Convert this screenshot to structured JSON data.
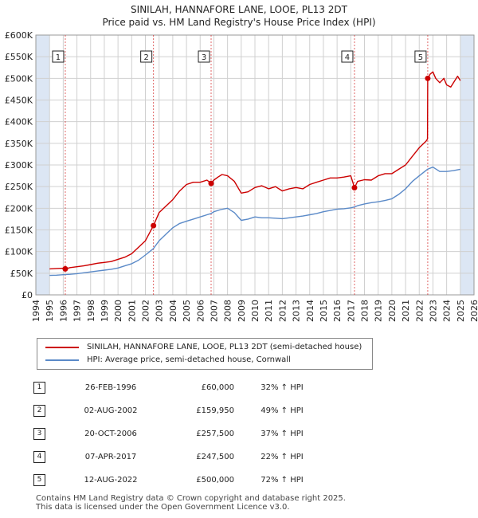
{
  "title_line1": "SINILAH, HANNAFORE LANE, LOOE, PL13 2DT",
  "title_line2": "Price paid vs. HM Land Registry's House Price Index (HPI)",
  "legend": {
    "property": "SINILAH, HANNAFORE LANE, LOOE, PL13 2DT (semi-detached house)",
    "hpi": "HPI: Average price, semi-detached house, Cornwall"
  },
  "sales": [
    {
      "num": "1",
      "date": "26-FEB-1996",
      "price": "£60,000",
      "hpi": "32% ↑ HPI"
    },
    {
      "num": "2",
      "date": "02-AUG-2002",
      "price": "£159,950",
      "hpi": "49% ↑ HPI"
    },
    {
      "num": "3",
      "date": "20-OCT-2006",
      "price": "£257,500",
      "hpi": "37% ↑ HPI"
    },
    {
      "num": "4",
      "date": "07-APR-2017",
      "price": "£247,500",
      "hpi": "22% ↑ HPI"
    },
    {
      "num": "5",
      "date": "12-AUG-2022",
      "price": "£500,000",
      "hpi": "72% ↑ HPI"
    }
  ],
  "footer_line1": "Contains HM Land Registry data © Crown copyright and database right 2025.",
  "footer_line2": "This data is licensed under the Open Government Licence v3.0.",
  "colors": {
    "property": "#cc0000",
    "hpi": "#5b8ac8",
    "shade": "#dce6f4",
    "grid": "#d0d0d0"
  },
  "chart_data": {
    "type": "line",
    "title": "SINILAH, HANNAFORE LANE, LOOE, PL13 2DT — Price paid vs. HM Land Registry's House Price Index (HPI)",
    "xlabel": "",
    "ylabel": "",
    "xlim": [
      1994,
      2026
    ],
    "ylim": [
      0,
      600000
    ],
    "x_ticks": [
      1994,
      1995,
      1996,
      1997,
      1998,
      1999,
      2000,
      2001,
      2002,
      2003,
      2004,
      2005,
      2006,
      2007,
      2008,
      2009,
      2010,
      2011,
      2012,
      2013,
      2014,
      2015,
      2016,
      2017,
      2018,
      2019,
      2020,
      2021,
      2022,
      2023,
      2024,
      2025,
      2026
    ],
    "y_ticks": [
      0,
      50000,
      100000,
      150000,
      200000,
      250000,
      300000,
      350000,
      400000,
      450000,
      500000,
      550000,
      600000
    ],
    "y_tick_labels": [
      "£0",
      "£50K",
      "£100K",
      "£150K",
      "£200K",
      "£250K",
      "£300K",
      "£350K",
      "£400K",
      "£450K",
      "£500K",
      "£550K",
      "£600K"
    ],
    "shaded_ranges": [
      [
        1994,
        1995
      ],
      [
        2025,
        2026
      ]
    ],
    "series": [
      {
        "name": "SINILAH, HANNAFORE LANE, LOOE, PL13 2DT (semi-detached house)",
        "x": [
          1995.0,
          1995.5,
          1996.0,
          1996.15,
          1996.5,
          1997.0,
          1997.5,
          1998.0,
          1998.5,
          1999.0,
          1999.5,
          2000.0,
          2000.5,
          2001.0,
          2001.5,
          2002.0,
          2002.59,
          2003.0,
          2003.5,
          2004.0,
          2004.5,
          2005.0,
          2005.5,
          2006.0,
          2006.5,
          2006.8,
          2007.0,
          2007.3,
          2007.6,
          2008.0,
          2008.5,
          2009.0,
          2009.5,
          2010.0,
          2010.5,
          2011.0,
          2011.5,
          2012.0,
          2012.5,
          2013.0,
          2013.5,
          2014.0,
          2014.5,
          2015.0,
          2015.5,
          2016.0,
          2016.5,
          2017.0,
          2017.27,
          2017.5,
          2018.0,
          2018.5,
          2019.0,
          2019.5,
          2020.0,
          2020.5,
          2021.0,
          2021.5,
          2022.0,
          2022.5,
          2022.6,
          2022.62,
          2022.8,
          2023.0,
          2023.2,
          2023.5,
          2023.8,
          2024.0,
          2024.3,
          2024.6,
          2024.8,
          2025.0
        ],
        "values": [
          60000,
          61000,
          61500,
          60000,
          63000,
          65000,
          67000,
          70000,
          73000,
          75000,
          77000,
          82000,
          87000,
          95000,
          110000,
          125000,
          159950,
          190000,
          205000,
          220000,
          240000,
          255000,
          260000,
          260000,
          265000,
          257500,
          265000,
          272000,
          278000,
          275000,
          262000,
          235000,
          238000,
          248000,
          252000,
          245000,
          250000,
          240000,
          245000,
          248000,
          245000,
          255000,
          260000,
          265000,
          270000,
          270000,
          272000,
          275000,
          247500,
          262000,
          266000,
          265000,
          275000,
          280000,
          280000,
          290000,
          300000,
          320000,
          340000,
          355000,
          360000,
          500000,
          510000,
          515000,
          500000,
          490000,
          500000,
          485000,
          480000,
          495000,
          505000,
          495000
        ]
      },
      {
        "name": "HPI: Average price, semi-detached house, Cornwall",
        "x": [
          1995.0,
          1995.5,
          1996.0,
          1996.5,
          1997.0,
          1997.5,
          1998.0,
          1998.5,
          1999.0,
          1999.5,
          2000.0,
          2000.5,
          2001.0,
          2001.5,
          2002.0,
          2002.59,
          2003.0,
          2003.5,
          2004.0,
          2004.5,
          2005.0,
          2005.5,
          2006.0,
          2006.5,
          2006.8,
          2007.0,
          2007.5,
          2008.0,
          2008.5,
          2009.0,
          2009.5,
          2010.0,
          2010.5,
          2011.0,
          2011.5,
          2012.0,
          2012.5,
          2013.0,
          2013.5,
          2014.0,
          2014.5,
          2015.0,
          2015.5,
          2016.0,
          2016.5,
          2017.0,
          2017.27,
          2017.5,
          2018.0,
          2018.5,
          2019.0,
          2019.5,
          2020.0,
          2020.5,
          2021.0,
          2021.5,
          2022.0,
          2022.6,
          2023.0,
          2023.5,
          2024.0,
          2024.5,
          2025.0
        ],
        "values": [
          45000,
          45500,
          46500,
          47500,
          49000,
          51000,
          53000,
          55000,
          57000,
          59000,
          62000,
          67000,
          72000,
          80000,
          92000,
          107000,
          125000,
          140000,
          155000,
          165000,
          170000,
          175000,
          180000,
          185000,
          188000,
          192000,
          197000,
          200000,
          190000,
          172000,
          175000,
          180000,
          178000,
          178000,
          177000,
          176000,
          178000,
          180000,
          182000,
          185000,
          188000,
          192000,
          195000,
          198000,
          199000,
          201000,
          203000,
          206000,
          210000,
          213000,
          215000,
          218000,
          222000,
          232000,
          245000,
          262000,
          275000,
          290000,
          295000,
          285000,
          285000,
          287000,
          290000
        ]
      }
    ],
    "annotations": [
      {
        "label": "1",
        "x": 1996.15,
        "value": 60000
      },
      {
        "label": "2",
        "x": 2002.59,
        "value": 159950
      },
      {
        "label": "3",
        "x": 2006.8,
        "value": 257500
      },
      {
        "label": "4",
        "x": 2017.27,
        "value": 247500
      },
      {
        "label": "5",
        "x": 2022.62,
        "value": 500000
      }
    ]
  }
}
